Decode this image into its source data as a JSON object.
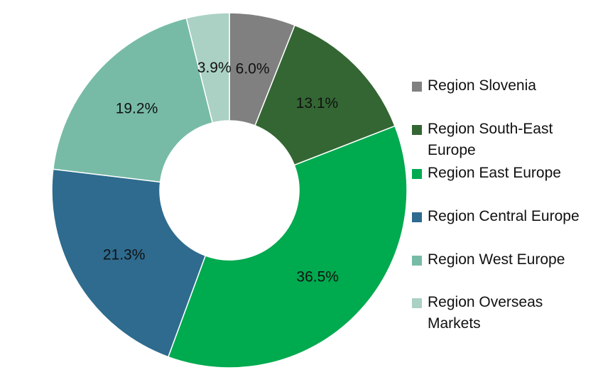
{
  "chart_data": {
    "type": "pie",
    "donut": true,
    "categories": [
      "Region Slovenia",
      "Region South-East Europe",
      "Region East Europe",
      "Region Central Europe",
      "Region West Europe",
      "Region Overseas Markets"
    ],
    "values": [
      6.0,
      13.1,
      36.5,
      21.3,
      19.2,
      3.9
    ],
    "labels": [
      "6.0%",
      "13.1%",
      "36.5%",
      "21.3%",
      "19.2%",
      "3.9%"
    ],
    "colors": [
      "#808080",
      "#336633",
      "#00aa4f",
      "#2e6b8e",
      "#77bba6",
      "#aad1c4"
    ],
    "legend_position": "right",
    "start_angle_deg": 0,
    "direction": "clockwise"
  }
}
